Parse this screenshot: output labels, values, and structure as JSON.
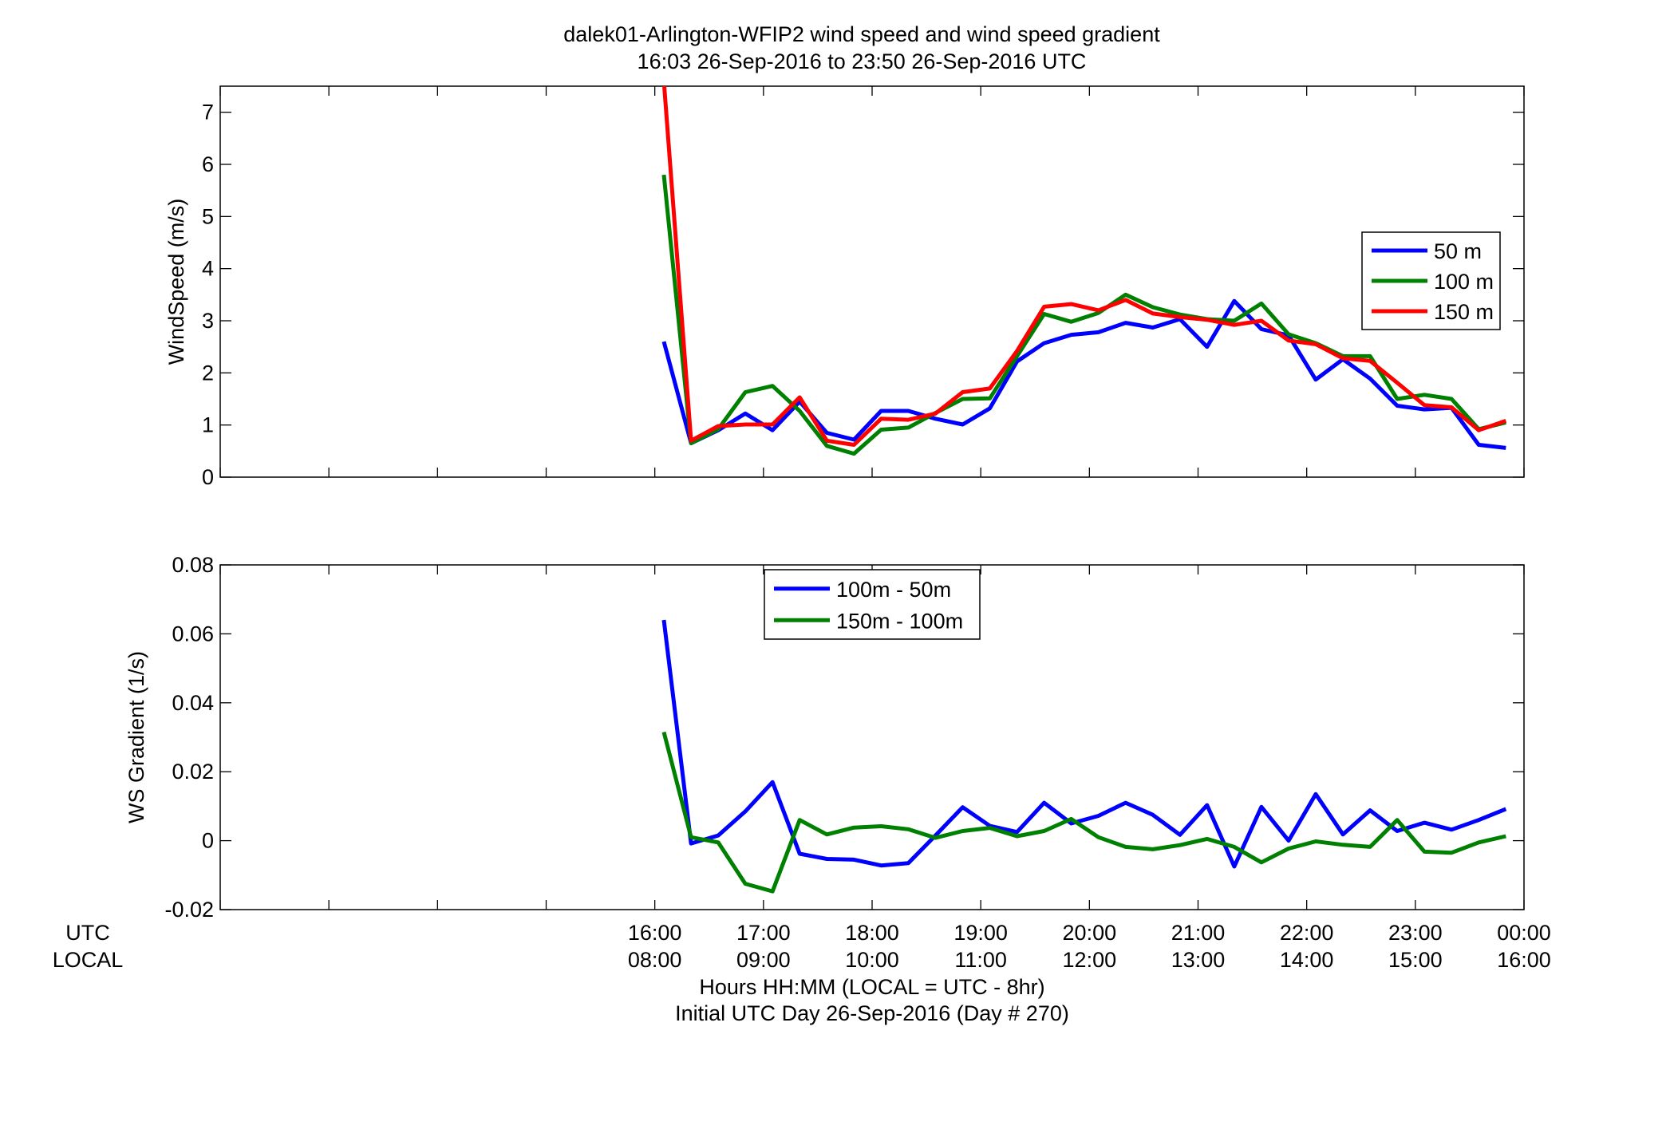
{
  "figure": {
    "title_line1": "dalek01-Arlington-WFIP2  wind speed and wind speed gradient",
    "title_line2": "16:03 26-Sep-2016 to 23:50 26-Sep-2016  UTC",
    "row_label_utc": "UTC",
    "row_label_local": "LOCAL",
    "xlabel_line1": "Hours HH:MM  (LOCAL = UTC - 8hr)",
    "xlabel_line2": "Initial UTC Day 26-Sep-2016 (Day # 270)",
    "x_ticks_utc": [
      "16:00",
      "17:00",
      "18:00",
      "19:00",
      "20:00",
      "21:00",
      "22:00",
      "23:00",
      "00:00"
    ],
    "x_ticks_local": [
      "08:00",
      "09:00",
      "10:00",
      "11:00",
      "12:00",
      "13:00",
      "14:00",
      "15:00",
      "16:00"
    ]
  },
  "chart_data": [
    {
      "type": "line",
      "ylabel": "WindSpeed (m/s)",
      "xlim": [
        "12:00",
        "24:00"
      ],
      "ylim": [
        0,
        7.5
      ],
      "y_ticks": [
        "0",
        "1",
        "2",
        "3",
        "4",
        "5",
        "6",
        "7"
      ],
      "legend_position": "right",
      "x": [
        "16:05",
        "16:20",
        "16:35",
        "16:50",
        "17:05",
        "17:20",
        "17:35",
        "17:50",
        "18:05",
        "18:20",
        "18:35",
        "18:50",
        "19:05",
        "19:20",
        "19:35",
        "19:50",
        "20:05",
        "20:20",
        "20:35",
        "20:50",
        "21:05",
        "21:20",
        "21:35",
        "21:50",
        "22:05",
        "22:20",
        "22:35",
        "22:50",
        "23:05",
        "23:20",
        "23:35",
        "23:50"
      ],
      "series": [
        {
          "name": "50 m",
          "color": "#0000ff",
          "values": [
            2.6,
            0.65,
            0.9,
            1.22,
            0.9,
            1.45,
            0.85,
            0.72,
            1.27,
            1.27,
            1.12,
            1.01,
            1.32,
            2.22,
            2.57,
            2.73,
            2.78,
            2.96,
            2.87,
            3.03,
            2.5,
            3.38,
            2.84,
            2.72,
            1.87,
            2.26,
            1.89,
            1.37,
            1.3,
            1.33,
            0.62,
            0.56
          ]
        },
        {
          "name": "100 m",
          "color": "#008000",
          "values": [
            5.8,
            0.65,
            0.92,
            1.63,
            1.75,
            1.27,
            0.6,
            0.45,
            0.91,
            0.95,
            1.23,
            1.5,
            1.51,
            2.32,
            3.13,
            2.98,
            3.15,
            3.5,
            3.26,
            3.12,
            3.03,
            3.0,
            3.33,
            2.74,
            2.57,
            2.32,
            2.32,
            1.5,
            1.58,
            1.5,
            0.92,
            1.05
          ]
        },
        {
          "name": "150 m",
          "color": "#ff0000",
          "values": [
            7.6,
            0.7,
            0.98,
            1.01,
            1.01,
            1.53,
            0.7,
            0.62,
            1.12,
            1.1,
            1.22,
            1.63,
            1.7,
            2.42,
            3.27,
            3.32,
            3.2,
            3.4,
            3.14,
            3.07,
            3.02,
            2.92,
            3.0,
            2.62,
            2.55,
            2.28,
            2.23,
            1.81,
            1.38,
            1.34,
            0.9,
            1.08
          ]
        }
      ]
    },
    {
      "type": "line",
      "ylabel": "WS Gradient (1/s)",
      "xlim": [
        "12:00",
        "24:00"
      ],
      "ylim": [
        -0.02,
        0.08
      ],
      "y_ticks": [
        "-0.02",
        "0",
        "0.02",
        "0.04",
        "0.06",
        "0.08"
      ],
      "legend_position": "top",
      "x": [
        "16:05",
        "16:20",
        "16:35",
        "16:50",
        "17:05",
        "17:20",
        "17:35",
        "17:50",
        "18:05",
        "18:20",
        "18:35",
        "18:50",
        "19:05",
        "19:20",
        "19:35",
        "19:50",
        "20:05",
        "20:20",
        "20:35",
        "20:50",
        "21:05",
        "21:20",
        "21:35",
        "21:50",
        "22:05",
        "22:20",
        "22:35",
        "22:50",
        "23:05",
        "23:20",
        "23:35",
        "23:50"
      ],
      "series": [
        {
          "name": "100m - 50m",
          "color": "#0000ff",
          "values": [
            0.064,
            -0.0008,
            0.0015,
            0.0085,
            0.017,
            -0.0038,
            -0.0053,
            -0.0055,
            -0.0072,
            -0.0065,
            0.0015,
            0.0097,
            0.0043,
            0.0025,
            0.011,
            0.005,
            0.0072,
            0.011,
            0.0075,
            0.0017,
            0.0103,
            -0.0075,
            0.0098,
            0.0,
            0.0135,
            0.0018,
            0.0088,
            0.0028,
            0.0052,
            0.0032,
            0.006,
            0.0092
          ]
        },
        {
          "name": "150m - 100m",
          "color": "#008000",
          "values": [
            0.0315,
            0.001,
            -0.0005,
            -0.0125,
            -0.0147,
            0.006,
            0.0018,
            0.0038,
            0.0042,
            0.0033,
            0.0008,
            0.0028,
            0.0037,
            0.0013,
            0.0028,
            0.0063,
            0.001,
            -0.0018,
            -0.0025,
            -0.0013,
            0.0005,
            -0.0018,
            -0.0063,
            -0.0023,
            -0.0002,
            -0.0012,
            -0.0018,
            0.006,
            -0.0032,
            -0.0035,
            -0.0005,
            0.0013
          ]
        }
      ]
    }
  ]
}
